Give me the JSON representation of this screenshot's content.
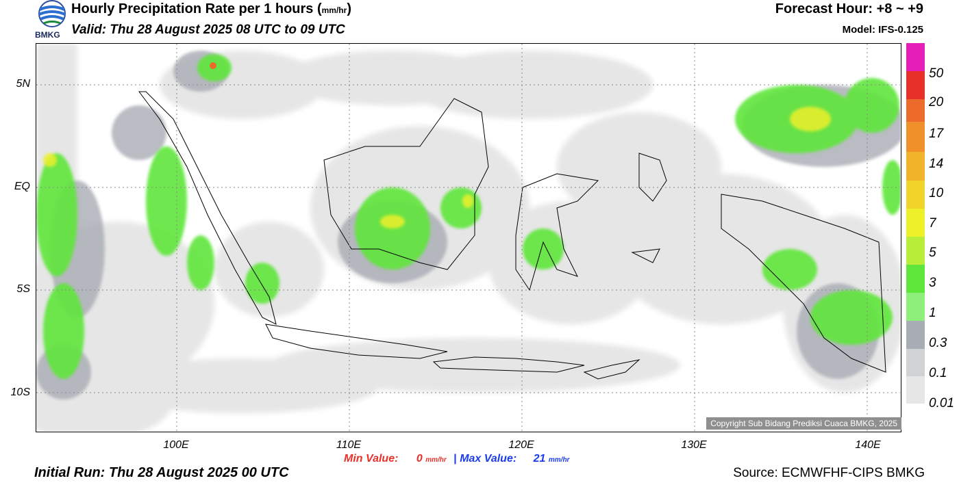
{
  "header": {
    "logo_text": "BMKG",
    "title": "Hourly Precipitation Rate per 1 hours (",
    "title_unit": "mm/hr",
    "title_close": ")",
    "valid": "Valid: Thu 28 August 2025 08 UTC to 09 UTC",
    "forecast_hour": "Forecast Hour: +8 ~ +9",
    "model": "Model: IFS-0.125"
  },
  "map": {
    "lat_labels": [
      "5N",
      "EQ",
      "5S",
      "10S"
    ],
    "lon_labels": [
      "100E",
      "110E",
      "120E",
      "130E",
      "140E"
    ],
    "copyright": "Copyright Sub Bidang Prediksi Cuaca BMKG, 2025"
  },
  "colorbar": {
    "labels": [
      "50",
      "20",
      "17",
      "14",
      "10",
      "7",
      "5",
      "3",
      "1",
      "0.3",
      "0.1",
      "0.01"
    ],
    "colors": [
      "#e61eb8",
      "#e8302a",
      "#ec6a2a",
      "#f0902a",
      "#f0b32a",
      "#f0d42a",
      "#eef02a",
      "#b8ee3a",
      "#5ee63a",
      "#8ef07a",
      "#a8acb4",
      "#d0d2d4",
      "#e6e6e6"
    ]
  },
  "footer": {
    "min_label": "Min Value:",
    "min_value": "0",
    "separator": "|",
    "max_label": "Max Value:",
    "max_value": "21",
    "unit": "mm/hr",
    "initial_run": "Initial Run: Thu 28 August 2025 00 UTC",
    "source": "Source: ECMWFHF-CIPS BMKG"
  }
}
